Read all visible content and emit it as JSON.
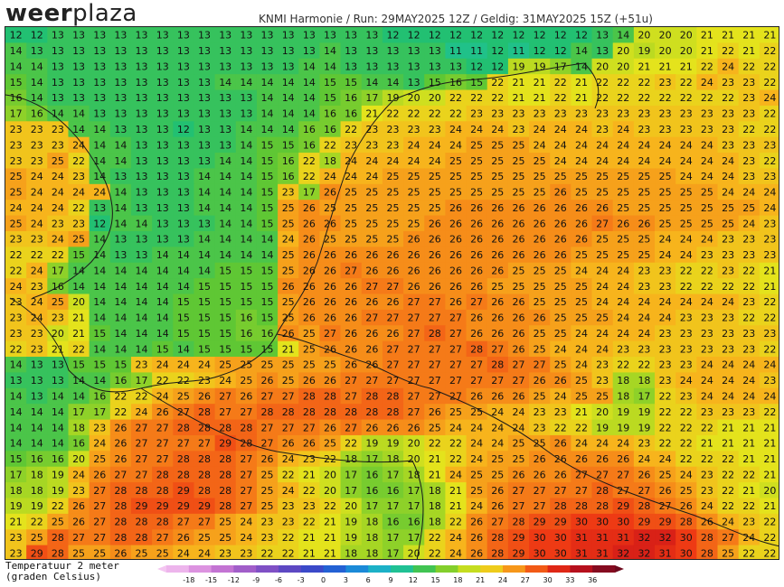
{
  "brand": {
    "bold": "weer",
    "light": "plaza"
  },
  "header": {
    "text": "KNMI Harmonie / Run: 29MAY2025 12Z / Geldig: 31MAY2025 15Z (+51u)"
  },
  "map": {
    "variable": "temperature_2m",
    "units": "°C",
    "region": "Benelux / North Sea",
    "grid_rows": [
      [
        12,
        12,
        13,
        13,
        13,
        13,
        13,
        13,
        13,
        13,
        13,
        13,
        13,
        13,
        13,
        13,
        13,
        13,
        12,
        12,
        12,
        12,
        12,
        12,
        12,
        12,
        12,
        12,
        13,
        14,
        20,
        20,
        20,
        21,
        21,
        21,
        21
      ],
      [
        14,
        13,
        13,
        13,
        13,
        13,
        13,
        13,
        13,
        13,
        13,
        13,
        13,
        13,
        13,
        14,
        13,
        13,
        13,
        13,
        13,
        11,
        11,
        12,
        11,
        12,
        12,
        14,
        13,
        20,
        19,
        20,
        20,
        21,
        22,
        21,
        22
      ],
      [
        14,
        14,
        13,
        13,
        13,
        13,
        13,
        13,
        13,
        13,
        13,
        13,
        13,
        13,
        14,
        14,
        13,
        13,
        13,
        13,
        13,
        13,
        12,
        12,
        19,
        19,
        17,
        14,
        20,
        20,
        21,
        21,
        21,
        22,
        24,
        22,
        22
      ],
      [
        15,
        14,
        13,
        13,
        13,
        13,
        13,
        13,
        13,
        13,
        14,
        14,
        14,
        14,
        14,
        15,
        15,
        14,
        14,
        13,
        15,
        16,
        15,
        22,
        21,
        21,
        22,
        21,
        22,
        22,
        22,
        23,
        22,
        24,
        23,
        23,
        22
      ],
      [
        16,
        14,
        13,
        13,
        13,
        13,
        13,
        13,
        13,
        13,
        13,
        13,
        14,
        14,
        14,
        15,
        16,
        17,
        19,
        20,
        20,
        22,
        22,
        22,
        21,
        21,
        22,
        21,
        22,
        22,
        22,
        22,
        22,
        22,
        22,
        23,
        24
      ],
      [
        17,
        16,
        14,
        14,
        13,
        13,
        13,
        13,
        13,
        13,
        13,
        13,
        14,
        14,
        14,
        16,
        16,
        21,
        22,
        22,
        22,
        22,
        23,
        23,
        23,
        23,
        23,
        23,
        23,
        23,
        23,
        23,
        23,
        23,
        23,
        23,
        22
      ],
      [
        23,
        23,
        23,
        14,
        14,
        13,
        13,
        13,
        12,
        13,
        13,
        14,
        14,
        14,
        16,
        16,
        22,
        23,
        23,
        23,
        23,
        24,
        24,
        24,
        23,
        24,
        24,
        24,
        23,
        24,
        23,
        23,
        23,
        23,
        23,
        22,
        22
      ],
      [
        23,
        23,
        23,
        24,
        14,
        14,
        13,
        13,
        13,
        13,
        13,
        14,
        15,
        15,
        16,
        22,
        23,
        23,
        23,
        24,
        24,
        24,
        25,
        25,
        25,
        24,
        24,
        24,
        24,
        24,
        24,
        24,
        24,
        24,
        23,
        23,
        23
      ],
      [
        23,
        23,
        25,
        22,
        14,
        14,
        13,
        13,
        13,
        13,
        14,
        14,
        15,
        16,
        22,
        18,
        24,
        24,
        24,
        24,
        24,
        25,
        25,
        25,
        25,
        25,
        24,
        24,
        24,
        24,
        24,
        24,
        24,
        24,
        24,
        23,
        22
      ],
      [
        25,
        24,
        24,
        23,
        14,
        13,
        13,
        13,
        13,
        14,
        14,
        14,
        15,
        16,
        22,
        24,
        24,
        24,
        25,
        25,
        25,
        25,
        25,
        25,
        25,
        25,
        25,
        25,
        25,
        25,
        25,
        25,
        24,
        24,
        24,
        23,
        23
      ],
      [
        25,
        24,
        24,
        24,
        24,
        14,
        13,
        13,
        13,
        14,
        14,
        14,
        15,
        23,
        17,
        26,
        25,
        25,
        25,
        25,
        25,
        25,
        25,
        25,
        25,
        25,
        26,
        25,
        25,
        25,
        25,
        25,
        25,
        25,
        24,
        24,
        24
      ],
      [
        24,
        24,
        24,
        22,
        13,
        14,
        13,
        13,
        13,
        14,
        14,
        14,
        15,
        25,
        26,
        25,
        25,
        25,
        25,
        25,
        25,
        26,
        26,
        26,
        26,
        26,
        26,
        26,
        26,
        25,
        25,
        25,
        25,
        25,
        25,
        25,
        24
      ],
      [
        25,
        24,
        23,
        23,
        12,
        14,
        14,
        13,
        13,
        13,
        14,
        14,
        15,
        25,
        26,
        26,
        25,
        25,
        25,
        25,
        26,
        26,
        26,
        26,
        26,
        26,
        26,
        26,
        27,
        26,
        26,
        25,
        25,
        25,
        25,
        24,
        23
      ],
      [
        23,
        23,
        24,
        25,
        14,
        13,
        13,
        13,
        13,
        14,
        14,
        14,
        14,
        24,
        26,
        25,
        25,
        25,
        25,
        26,
        26,
        26,
        26,
        26,
        26,
        26,
        26,
        26,
        25,
        25,
        25,
        24,
        24,
        24,
        23,
        23,
        23
      ],
      [
        22,
        22,
        22,
        15,
        14,
        13,
        13,
        14,
        14,
        14,
        14,
        14,
        14,
        25,
        26,
        26,
        26,
        26,
        26,
        26,
        26,
        26,
        26,
        26,
        26,
        26,
        26,
        25,
        25,
        25,
        25,
        24,
        24,
        23,
        23,
        23,
        23
      ],
      [
        22,
        24,
        17,
        14,
        14,
        14,
        14,
        14,
        14,
        14,
        15,
        15,
        15,
        25,
        26,
        26,
        27,
        26,
        26,
        26,
        26,
        26,
        26,
        26,
        25,
        25,
        25,
        24,
        24,
        24,
        23,
        23,
        22,
        22,
        23,
        22,
        21
      ],
      [
        24,
        23,
        16,
        14,
        14,
        14,
        14,
        14,
        14,
        15,
        15,
        15,
        15,
        26,
        26,
        26,
        26,
        27,
        27,
        26,
        26,
        26,
        26,
        25,
        25,
        25,
        25,
        25,
        24,
        24,
        23,
        23,
        22,
        22,
        22,
        22,
        21
      ],
      [
        23,
        24,
        25,
        20,
        14,
        14,
        14,
        14,
        15,
        15,
        15,
        15,
        15,
        25,
        26,
        26,
        26,
        26,
        26,
        27,
        27,
        26,
        27,
        26,
        26,
        25,
        25,
        25,
        24,
        24,
        24,
        24,
        24,
        24,
        24,
        23,
        22
      ],
      [
        23,
        24,
        23,
        21,
        14,
        14,
        14,
        14,
        15,
        15,
        15,
        16,
        15,
        25,
        26,
        26,
        26,
        27,
        27,
        27,
        27,
        27,
        26,
        26,
        26,
        26,
        25,
        25,
        25,
        24,
        24,
        24,
        23,
        23,
        23,
        22,
        22
      ],
      [
        23,
        23,
        20,
        21,
        15,
        14,
        14,
        14,
        15,
        15,
        15,
        16,
        16,
        26,
        25,
        27,
        26,
        26,
        26,
        27,
        28,
        27,
        26,
        26,
        26,
        25,
        25,
        24,
        24,
        24,
        24,
        23,
        23,
        23,
        23,
        23,
        23
      ],
      [
        22,
        23,
        21,
        22,
        14,
        14,
        14,
        15,
        14,
        15,
        15,
        15,
        15,
        21,
        25,
        26,
        26,
        26,
        27,
        27,
        27,
        27,
        28,
        27,
        26,
        25,
        24,
        24,
        24,
        23,
        23,
        23,
        23,
        23,
        23,
        23,
        22
      ],
      [
        14,
        13,
        13,
        15,
        15,
        15,
        23,
        24,
        24,
        24,
        25,
        25,
        25,
        25,
        25,
        25,
        26,
        26,
        27,
        27,
        27,
        27,
        27,
        28,
        27,
        27,
        25,
        24,
        23,
        22,
        22,
        23,
        23,
        24,
        24,
        24,
        24
      ],
      [
        13,
        13,
        13,
        14,
        14,
        16,
        17,
        22,
        22,
        23,
        24,
        25,
        26,
        25,
        26,
        26,
        27,
        27,
        27,
        27,
        27,
        27,
        27,
        27,
        27,
        26,
        26,
        25,
        23,
        18,
        18,
        23,
        24,
        24,
        24,
        24,
        23
      ],
      [
        14,
        13,
        14,
        14,
        16,
        22,
        22,
        24,
        25,
        26,
        27,
        26,
        27,
        27,
        28,
        28,
        27,
        28,
        28,
        27,
        27,
        27,
        26,
        26,
        26,
        25,
        24,
        25,
        25,
        18,
        17,
        22,
        23,
        24,
        24,
        24,
        24
      ],
      [
        14,
        14,
        14,
        17,
        17,
        22,
        24,
        26,
        27,
        28,
        27,
        27,
        28,
        28,
        28,
        28,
        28,
        28,
        28,
        27,
        26,
        25,
        25,
        24,
        24,
        23,
        23,
        21,
        20,
        19,
        19,
        22,
        22,
        23,
        23,
        23,
        22
      ],
      [
        14,
        14,
        14,
        18,
        23,
        26,
        27,
        27,
        28,
        28,
        28,
        28,
        27,
        27,
        27,
        26,
        27,
        26,
        26,
        26,
        25,
        24,
        24,
        24,
        24,
        23,
        22,
        22,
        19,
        19,
        19,
        22,
        22,
        22,
        21,
        21,
        21
      ],
      [
        14,
        14,
        14,
        16,
        24,
        26,
        27,
        27,
        27,
        27,
        29,
        28,
        27,
        26,
        26,
        25,
        22,
        19,
        19,
        20,
        22,
        22,
        24,
        24,
        25,
        25,
        26,
        24,
        24,
        24,
        23,
        22,
        22,
        21,
        21,
        21,
        21
      ],
      [
        15,
        16,
        16,
        20,
        25,
        26,
        27,
        27,
        28,
        28,
        28,
        27,
        26,
        24,
        23,
        22,
        18,
        17,
        18,
        20,
        21,
        22,
        24,
        25,
        25,
        26,
        26,
        26,
        26,
        26,
        24,
        24,
        22,
        22,
        22,
        21,
        21
      ],
      [
        17,
        18,
        19,
        24,
        26,
        27,
        27,
        28,
        28,
        28,
        28,
        27,
        25,
        22,
        21,
        20,
        17,
        16,
        17,
        18,
        21,
        24,
        25,
        25,
        26,
        26,
        26,
        27,
        27,
        27,
        26,
        25,
        24,
        23,
        22,
        22,
        21
      ],
      [
        18,
        18,
        19,
        23,
        27,
        28,
        28,
        28,
        29,
        28,
        28,
        27,
        25,
        24,
        22,
        20,
        17,
        16,
        16,
        17,
        18,
        21,
        25,
        26,
        27,
        27,
        27,
        27,
        28,
        27,
        27,
        26,
        25,
        23,
        22,
        21,
        20
      ],
      [
        19,
        19,
        22,
        26,
        27,
        28,
        29,
        29,
        29,
        29,
        28,
        27,
        25,
        23,
        23,
        22,
        20,
        17,
        17,
        17,
        18,
        21,
        24,
        26,
        27,
        27,
        28,
        28,
        28,
        29,
        28,
        27,
        26,
        24,
        22,
        22,
        21
      ],
      [
        21,
        22,
        25,
        26,
        27,
        28,
        28,
        28,
        27,
        27,
        25,
        24,
        23,
        23,
        22,
        21,
        19,
        18,
        16,
        16,
        18,
        22,
        26,
        27,
        28,
        29,
        29,
        30,
        30,
        30,
        29,
        29,
        28,
        26,
        24,
        23,
        22
      ],
      [
        23,
        25,
        28,
        27,
        27,
        28,
        28,
        27,
        26,
        25,
        25,
        24,
        23,
        22,
        21,
        21,
        19,
        18,
        17,
        17,
        22,
        24,
        26,
        28,
        29,
        30,
        30,
        31,
        31,
        31,
        32,
        32,
        30,
        28,
        27,
        24,
        22
      ],
      [
        23,
        29,
        28,
        25,
        25,
        26,
        25,
        25,
        24,
        24,
        23,
        23,
        22,
        22,
        21,
        21,
        18,
        18,
        17,
        20,
        22,
        24,
        26,
        28,
        29,
        30,
        30,
        31,
        31,
        32,
        32,
        31,
        30,
        28,
        25,
        22,
        22
      ]
    ]
  },
  "legend": {
    "title_line1": "Temperatuur 2 meter",
    "title_line2": "(graden Celsius)",
    "ticks": [
      "-18",
      "-15",
      "-12",
      "-9",
      "-6",
      "-3",
      "0",
      "3",
      "6",
      "9",
      "12",
      "15",
      "18",
      "21",
      "24",
      "27",
      "30",
      "33",
      "36"
    ],
    "stops": [
      {
        "v": -21,
        "color": "#f4c6f1"
      },
      {
        "v": -18,
        "color": "#e6a4e6"
      },
      {
        "v": -15,
        "color": "#d282d9"
      },
      {
        "v": -12,
        "color": "#b366cc"
      },
      {
        "v": -9,
        "color": "#8f55c6"
      },
      {
        "v": -6,
        "color": "#6e4bc3"
      },
      {
        "v": -3,
        "color": "#4b45c2"
      },
      {
        "v": 0,
        "color": "#2a4dd0"
      },
      {
        "v": 3,
        "color": "#1b74d8"
      },
      {
        "v": 6,
        "color": "#1aa0d8"
      },
      {
        "v": 9,
        "color": "#1dc2b6"
      },
      {
        "v": 12,
        "color": "#22c072"
      },
      {
        "v": 15,
        "color": "#5fc734"
      },
      {
        "v": 18,
        "color": "#a6d624"
      },
      {
        "v": 21,
        "color": "#e4e31c"
      },
      {
        "v": 24,
        "color": "#f7b41c"
      },
      {
        "v": 27,
        "color": "#f57a18"
      },
      {
        "v": 30,
        "color": "#ee3a14"
      },
      {
        "v": 33,
        "color": "#cf1418"
      },
      {
        "v": 36,
        "color": "#9c0c22"
      },
      {
        "v": 39,
        "color": "#6e0a1e"
      }
    ]
  }
}
